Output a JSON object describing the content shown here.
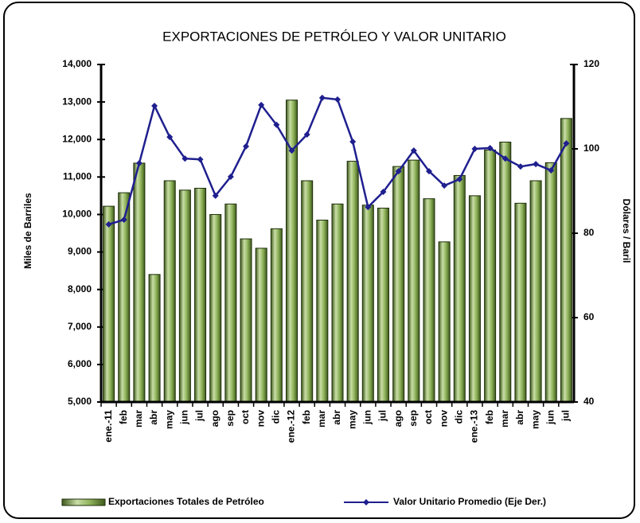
{
  "chart_data": {
    "type": "bar_line",
    "title": "EXPORTACIONES DE PETRÓLEO Y VALOR UNITARIO",
    "y_label": "Miles de Barriles",
    "y2_label": "Dólares / Baril",
    "categories": [
      "ene.-11",
      "feb",
      "mar",
      "abr",
      "may",
      "jun",
      "jul",
      "ago",
      "sep",
      "oct",
      "nov",
      "dic",
      "ene.-12",
      "feb",
      "mar",
      "abr",
      "may",
      "jun",
      "jul",
      "ago",
      "sep",
      "oct",
      "nov",
      "dic",
      "ene.-13",
      "feb",
      "mar",
      "abr",
      "may",
      "jun",
      "jul"
    ],
    "series": [
      {
        "name": "Exportaciones Totales de Petróleo",
        "type": "bar",
        "color": "#8fb35a",
        "values": [
          10220,
          10580,
          11370,
          8400,
          10900,
          10650,
          10700,
          10000,
          10280,
          9350,
          9100,
          9620,
          13050,
          10900,
          9850,
          10280,
          11420,
          10250,
          10170,
          11280,
          11450,
          10420,
          9270,
          11040,
          10500,
          11720,
          11930,
          10300,
          10900,
          11380,
          12560
        ]
      },
      {
        "name": "Valor Unitario Promedio (Eje Der.)",
        "type": "line",
        "axis": "y2",
        "color": "#1f1f8f",
        "values": [
          82.1,
          83.2,
          96.6,
          110.2,
          102.8,
          97.7,
          97.5,
          88.9,
          93.4,
          100.6,
          110.4,
          105.7,
          99.6,
          103.4,
          112.1,
          111.7,
          101.7,
          86.2,
          89.8,
          94.7,
          99.6,
          94.7,
          91.3,
          92.8,
          100,
          100.2,
          97.7,
          95.8,
          96.4,
          94.9,
          101.3
        ]
      }
    ],
    "ylim": [
      5000,
      14000
    ],
    "yticks": [
      {
        "value": 5000,
        "label": "5,000"
      },
      {
        "value": 6000,
        "label": "6,000"
      },
      {
        "value": 7000,
        "label": "7,000"
      },
      {
        "value": 8000,
        "label": "8,000"
      },
      {
        "value": 9000,
        "label": "9,000"
      },
      {
        "value": 10000,
        "label": "10,000"
      },
      {
        "value": 11000,
        "label": "11,000"
      },
      {
        "value": 12000,
        "label": "12,000"
      },
      {
        "value": 13000,
        "label": "13,000"
      },
      {
        "value": 14000,
        "label": "14,000"
      }
    ],
    "y2lim": [
      40,
      120
    ],
    "y2ticks": [
      40,
      60,
      80,
      100,
      120
    ]
  }
}
